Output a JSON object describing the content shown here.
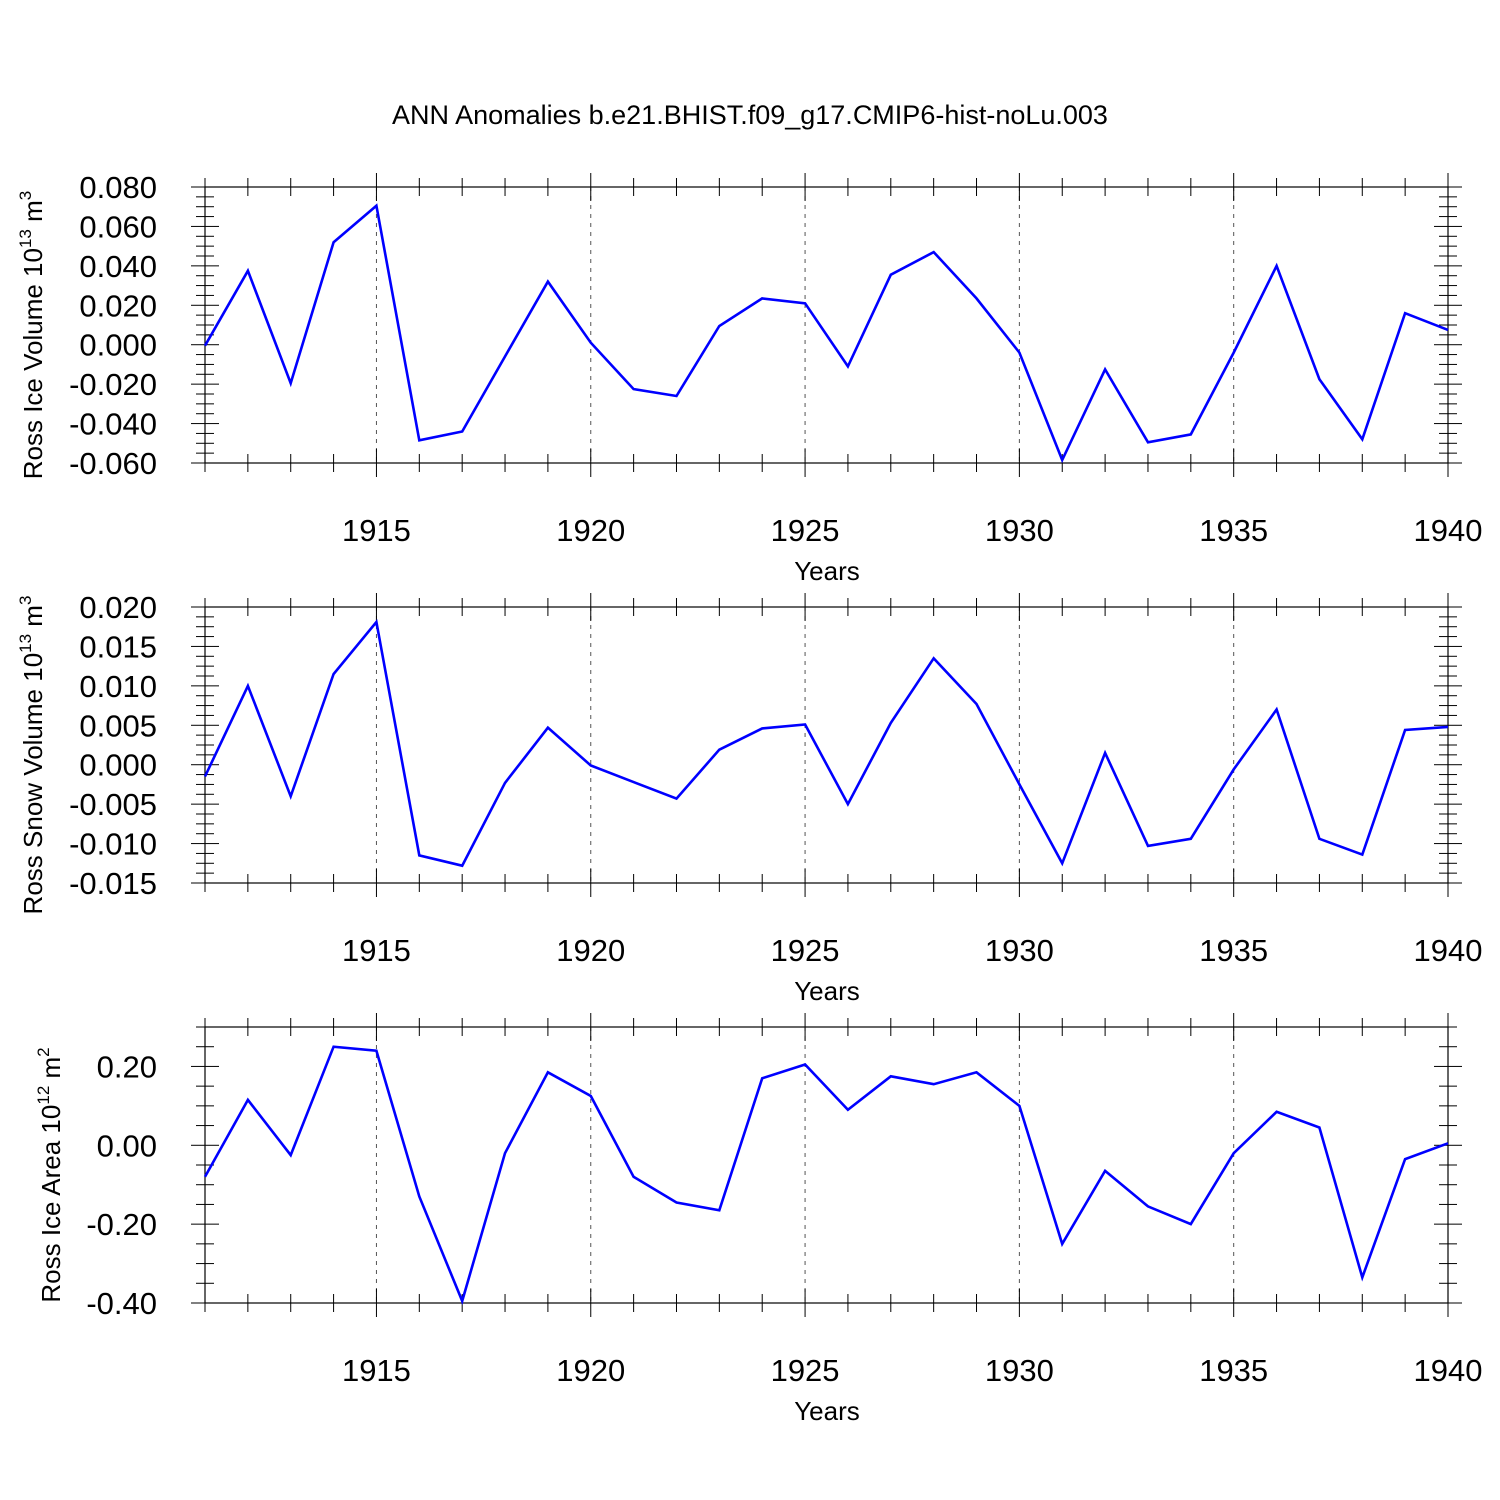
{
  "title": "ANN Anomalies b.e21.BHIST.f09_g17.CMIP6-hist-noLu.003",
  "chart_data": [
    {
      "type": "line",
      "xlabel": "Years",
      "ylabel": "Ross Ice Volume 10",
      "ylabel_exp": "13",
      "ylabel_unit": " m",
      "ylabel_unit_exp": "3",
      "xlim": [
        1911,
        1940
      ],
      "ylim": [
        -0.06,
        0.08
      ],
      "xticks": [
        1915,
        1920,
        1925,
        1930,
        1935,
        1940
      ],
      "ytick_labels": [
        "0.080",
        "0.060",
        "0.040",
        "0.020",
        "0.000",
        "-0.020",
        "-0.040",
        "-0.060"
      ],
      "ytick_values": [
        0.08,
        0.06,
        0.04,
        0.02,
        0.0,
        -0.02,
        -0.04,
        -0.06
      ],
      "grid": "vertical dashed at major x ticks",
      "line_color": "#0000ff",
      "x": [
        1911,
        1912,
        1913,
        1914,
        1915,
        1916,
        1917,
        1918,
        1919,
        1920,
        1921,
        1922,
        1923,
        1924,
        1925,
        1926,
        1927,
        1928,
        1929,
        1930,
        1931,
        1932,
        1933,
        1934,
        1935,
        1936,
        1937,
        1938,
        1939,
        1940
      ],
      "values": [
        -0.0005,
        0.0375,
        -0.0195,
        0.052,
        0.0705,
        -0.0485,
        -0.044,
        -0.006,
        0.032,
        0.001,
        -0.0225,
        -0.026,
        0.0095,
        0.0235,
        0.021,
        -0.011,
        0.0355,
        0.047,
        0.0235,
        -0.004,
        -0.0585,
        -0.0125,
        -0.0495,
        -0.0455,
        -0.004,
        0.04,
        -0.0175,
        -0.048,
        0.016,
        0.0075
      ]
    },
    {
      "type": "line",
      "xlabel": "Years",
      "ylabel": "Ross Snow Volume 10",
      "ylabel_exp": "13",
      "ylabel_unit": " m",
      "ylabel_unit_exp": "3",
      "xlim": [
        1911,
        1940
      ],
      "ylim": [
        -0.015,
        0.02
      ],
      "xticks": [
        1915,
        1920,
        1925,
        1930,
        1935,
        1940
      ],
      "ytick_labels": [
        "0.020",
        "0.015",
        "0.010",
        "0.005",
        "0.000",
        "-0.005",
        "-0.010",
        "-0.015"
      ],
      "ytick_values": [
        0.02,
        0.015,
        0.01,
        0.005,
        0.0,
        -0.005,
        -0.01,
        -0.015
      ],
      "grid": "vertical dashed at major x ticks",
      "line_color": "#0000ff",
      "x": [
        1911,
        1912,
        1913,
        1914,
        1915,
        1916,
        1917,
        1918,
        1919,
        1920,
        1921,
        1922,
        1923,
        1924,
        1925,
        1926,
        1927,
        1928,
        1929,
        1930,
        1931,
        1932,
        1933,
        1934,
        1935,
        1936,
        1937,
        1938,
        1939,
        1940
      ],
      "values": [
        -0.0015,
        0.01,
        -0.004,
        0.0115,
        0.0181,
        -0.0115,
        -0.0128,
        -0.0023,
        0.0047,
        -0.0001,
        -0.0022,
        -0.0043,
        0.0019,
        0.0046,
        0.0051,
        -0.005,
        0.0053,
        0.0135,
        0.0077,
        -0.0025,
        -0.0125,
        0.0015,
        -0.0103,
        -0.0094,
        -0.0006,
        0.007,
        -0.0094,
        -0.0114,
        0.0044,
        0.0048
      ]
    },
    {
      "type": "line",
      "xlabel": "Years",
      "ylabel": "Ross Ice Area 10",
      "ylabel_exp": "12",
      "ylabel_unit": " m",
      "ylabel_unit_exp": "2",
      "xlim": [
        1911,
        1940
      ],
      "ylim": [
        -0.4,
        0.3
      ],
      "xticks": [
        1915,
        1920,
        1925,
        1930,
        1935,
        1940
      ],
      "ytick_labels": [
        "0.20",
        "0.00",
        "-0.20",
        "-0.40"
      ],
      "ytick_values": [
        0.2,
        0.0,
        -0.2,
        -0.4
      ],
      "grid": "vertical dashed at major x ticks",
      "line_color": "#0000ff",
      "x": [
        1911,
        1912,
        1913,
        1914,
        1915,
        1916,
        1917,
        1918,
        1919,
        1920,
        1921,
        1922,
        1923,
        1924,
        1925,
        1926,
        1927,
        1928,
        1929,
        1930,
        1931,
        1932,
        1933,
        1934,
        1935,
        1936,
        1937,
        1938,
        1939,
        1940
      ],
      "values": [
        -0.08,
        0.115,
        -0.025,
        0.25,
        0.24,
        -0.13,
        -0.395,
        -0.02,
        0.185,
        0.125,
        -0.08,
        -0.145,
        -0.165,
        0.17,
        0.205,
        0.09,
        0.175,
        0.155,
        0.185,
        0.1,
        -0.25,
        -0.065,
        -0.155,
        -0.2,
        -0.02,
        0.085,
        0.045,
        -0.335,
        -0.035,
        0.005
      ]
    }
  ]
}
